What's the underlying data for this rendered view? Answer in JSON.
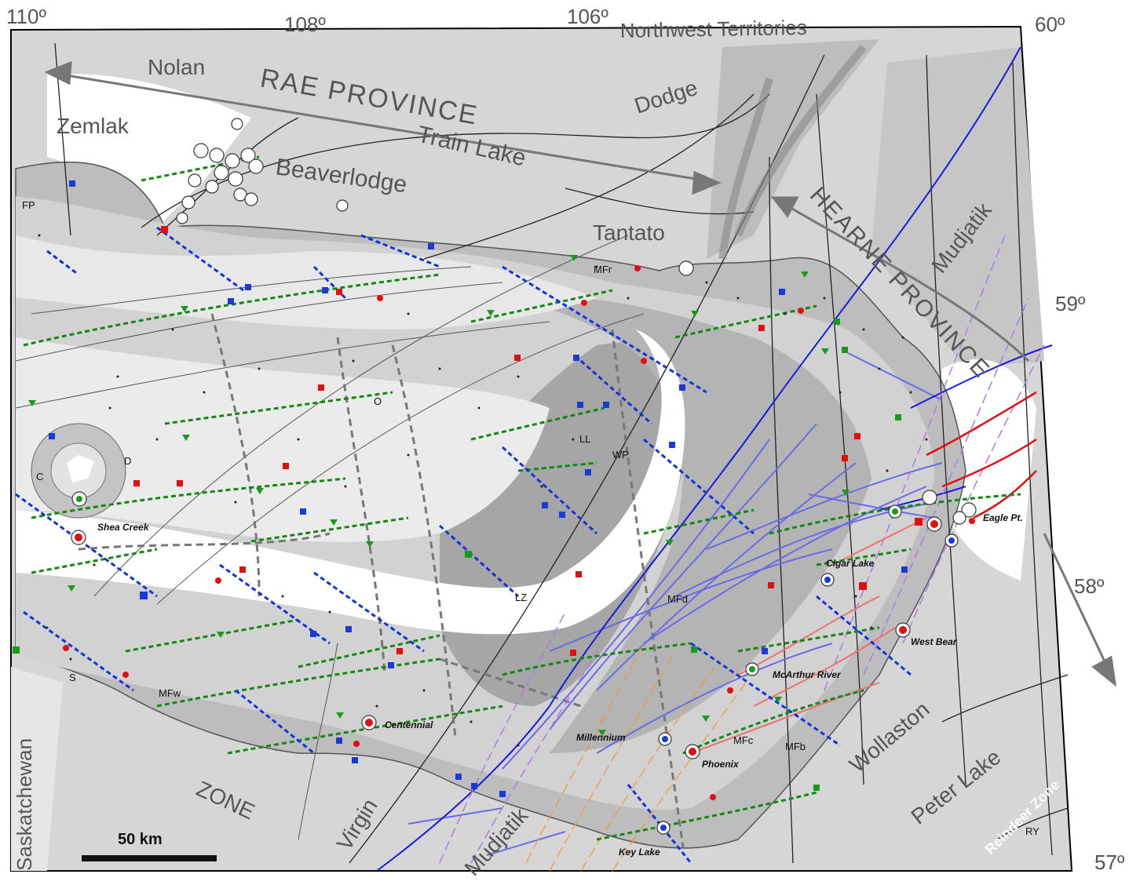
{
  "coordinates": {
    "lon_110": "110º",
    "lon_108": "108º",
    "lon_106": "106º",
    "lon_60": "60º",
    "lat_59": "59º",
    "lat_58": "58º",
    "lat_57": "57º"
  },
  "regions": {
    "northwest_territories": "Northwest Territories",
    "saskatchewan": "Saskatchewan",
    "rae_province": "RAE PROVINCE",
    "hearne_province": "HEARNE PROVINCE",
    "zone": "ZONE",
    "reindeer_zone": "Reindeer Zone"
  },
  "domains": {
    "nolan": "Nolan",
    "zemlak": "Zemlak",
    "train_lake": "Train Lake",
    "dodge": "Dodge",
    "beaverlodge": "Beaverlodge",
    "tantato": "Tantato",
    "mudjatik_ne": "Mudjatik",
    "mudjatik_s": "Mudjatik",
    "virgin": "Virgin",
    "wollaston": "Wollaston",
    "peter_lake": "Peter Lake"
  },
  "small_labels": {
    "fp": "FP",
    "mfr": "MFr",
    "o": "O",
    "d": "D",
    "c": "C",
    "ll": "LL",
    "wp": "WP",
    "lz": "LZ",
    "mfd": "MFd",
    "s": "S",
    "mfw": "MFw",
    "mfc": "MFc",
    "mfb": "MFb",
    "ry": "RY"
  },
  "deposits": {
    "shea_creek": "Shea Creek",
    "cigar_lake": "Cigar Lake",
    "eagle_pt": "Eagle Pt.",
    "west_bear": "West Bear",
    "mcarthur_river": "McArthur River",
    "centennial": "Centennial",
    "millennium": "Millennium",
    "phoenix": "Phoenix",
    "key_lake": "Key Lake"
  },
  "scale_bar": {
    "label": "50 km"
  },
  "colors": {
    "basin_light": "#ededed",
    "basin_mid": "#cfcfcf",
    "basin_dark": "#a8a8a8",
    "basement": "#d6d6d6",
    "inlier": "#ffffff",
    "blue_lines": "#1a1adf",
    "lightblue_lines": "#6a6ae8",
    "violet_lines": "#b07ae0",
    "orange_lines": "#e89a3a",
    "red_thrusts": "#e01010",
    "green_profiles": "#118811",
    "blue_profiles": "#1133dd",
    "sample_red": "#e01010",
    "sample_green": "#1a9a1a",
    "sample_blue": "#1a3ad8"
  },
  "icons": [
    "deposit-circle-icon",
    "sample-square-icon",
    "sample-triangle-icon",
    "sample-dot-icon",
    "arrow-icon",
    "scale-bar-icon"
  ]
}
